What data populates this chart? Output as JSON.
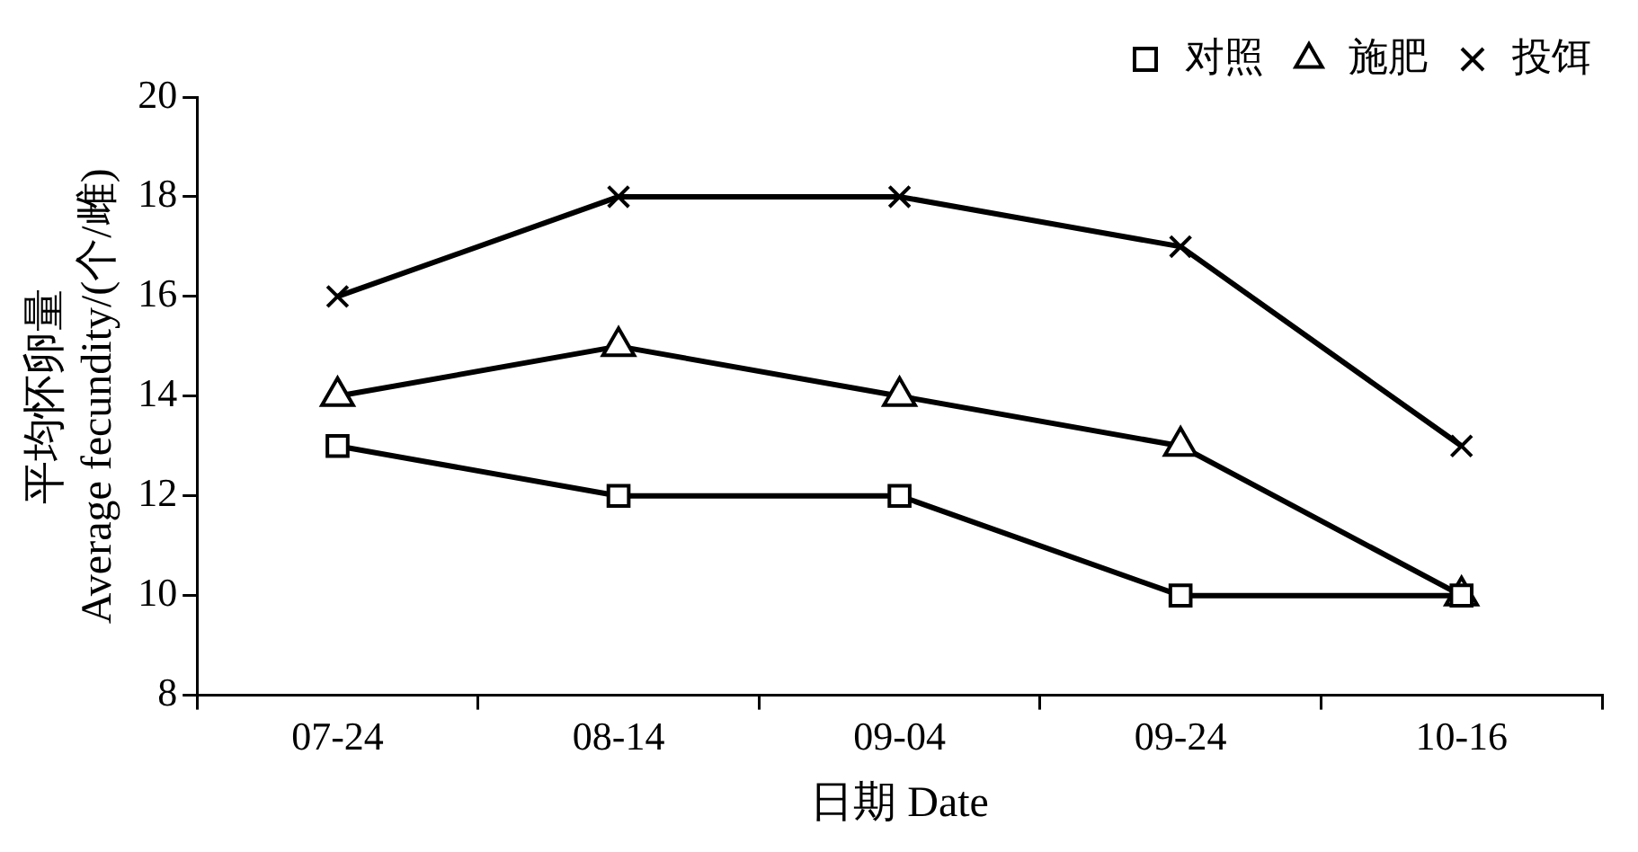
{
  "chart_data": {
    "type": "line",
    "xlabel": "日期 Date",
    "ylabel": "平均怀卵量\nAverage fecundity/(个/雌)",
    "categories": [
      "07-24",
      "08-14",
      "09-04",
      "09-24",
      "10-16"
    ],
    "series": [
      {
        "name": "对照",
        "color": "#000000",
        "marker": "square",
        "values": [
          13,
          12,
          12,
          10,
          10
        ]
      },
      {
        "name": "施肥",
        "color": "#000000",
        "marker": "triangle",
        "values": [
          14,
          15,
          14,
          13,
          10
        ]
      },
      {
        "name": "投饵",
        "color": "#000000",
        "marker": "cross",
        "values": [
          16,
          18,
          18,
          17,
          13
        ]
      }
    ],
    "ylim": [
      8,
      20
    ],
    "yticks": [
      8,
      10,
      12,
      14,
      16,
      18,
      20
    ],
    "grid": false,
    "legend": "top right",
    "line_style": "solid"
  }
}
